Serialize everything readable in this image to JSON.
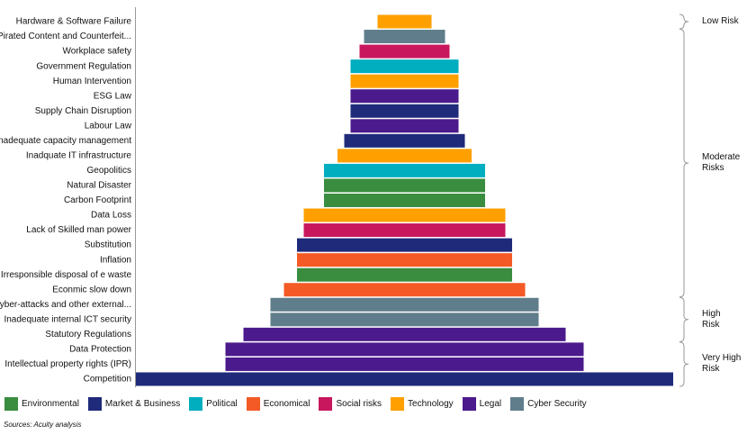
{
  "chart_data": {
    "type": "bar",
    "orientation": "centered-horizontal",
    "categories": [
      "Hardware & Software Failure",
      "Pirated Content and Counterfeit...",
      "Workplace safety",
      "Government Regulation",
      "Human Intervention",
      "ESG Law",
      "Supply Chain Disruption",
      "Labour Law",
      "Inadequate capacity management",
      "Inadquate IT infrastructure",
      "Geopolitics",
      "Natural Disaster",
      "Carbon Footprint",
      "Data Loss",
      "Lack of Skilled man power",
      "Substitution",
      "Inflation",
      "Irresponsible disposal of e waste",
      "Econmic slow down",
      "Cyber-attacks and other external...",
      "Inadequate internal ICT security",
      "Statutory Regulations",
      "Data Protection",
      "Intellectual property rights (IPR)",
      "Competition"
    ],
    "series": [
      {
        "name": "Environmental",
        "color": "#3a8c3f",
        "values": [
          null,
          null,
          null,
          null,
          null,
          null,
          null,
          null,
          null,
          null,
          null,
          179,
          179,
          null,
          null,
          null,
          null,
          239,
          null,
          null,
          null,
          null,
          null,
          null,
          null
        ]
      },
      {
        "name": "Market & Business",
        "color": "#1f2a7a",
        "values": [
          null,
          null,
          null,
          null,
          null,
          null,
          120,
          null,
          134,
          null,
          null,
          null,
          null,
          null,
          null,
          239,
          null,
          null,
          null,
          null,
          null,
          null,
          null,
          null,
          597
        ]
      },
      {
        "name": "Political",
        "color": "#00aec0",
        "values": [
          null,
          null,
          null,
          120,
          null,
          null,
          null,
          null,
          null,
          null,
          179,
          null,
          null,
          null,
          null,
          null,
          null,
          null,
          null,
          null,
          null,
          null,
          null,
          null,
          null
        ]
      },
      {
        "name": "Economical",
        "color": "#f45a25",
        "values": [
          null,
          null,
          null,
          null,
          null,
          null,
          null,
          null,
          null,
          null,
          null,
          null,
          null,
          null,
          null,
          null,
          239,
          null,
          268,
          null,
          null,
          null,
          null,
          null,
          null
        ]
      },
      {
        "name": "Social risks",
        "color": "#c8175d",
        "values": [
          null,
          null,
          100,
          null,
          null,
          null,
          null,
          null,
          null,
          null,
          null,
          null,
          null,
          null,
          224,
          null,
          null,
          null,
          null,
          null,
          null,
          null,
          null,
          null,
          null
        ]
      },
      {
        "name": "Technology",
        "color": "#ffa000",
        "values": [
          60,
          null,
          null,
          null,
          120,
          null,
          null,
          null,
          null,
          149,
          null,
          null,
          null,
          224,
          null,
          null,
          null,
          null,
          null,
          null,
          null,
          null,
          null,
          null,
          null
        ]
      },
      {
        "name": "Legal",
        "color": "#4b1a8c",
        "values": [
          null,
          null,
          null,
          null,
          null,
          120,
          null,
          120,
          null,
          null,
          null,
          null,
          null,
          null,
          null,
          null,
          null,
          null,
          null,
          null,
          null,
          358,
          398,
          398,
          null
        ]
      },
      {
        "name": "Cyber Security",
        "color": "#607d8b",
        "values": [
          null,
          90,
          null,
          null,
          null,
          null,
          null,
          null,
          null,
          null,
          null,
          null,
          null,
          null,
          null,
          null,
          null,
          null,
          null,
          298,
          298,
          null,
          null,
          null,
          null
        ]
      }
    ],
    "risk_bands": [
      {
        "label": "Low Risk",
        "from": "Hardware & Software Failure",
        "to": "Hardware & Software Failure"
      },
      {
        "label": "Moderate\nRisks",
        "from": "Pirated Content and Counterfeit...",
        "to": "Econmic slow down"
      },
      {
        "label": "High\nRisk",
        "from": "Cyber-attacks and other external...",
        "to": "Statutory Regulations"
      },
      {
        "label": "Very High\nRisk",
        "from": "Data Protection",
        "to": "Competition"
      }
    ],
    "source": "Sources: Acuity analysis"
  }
}
